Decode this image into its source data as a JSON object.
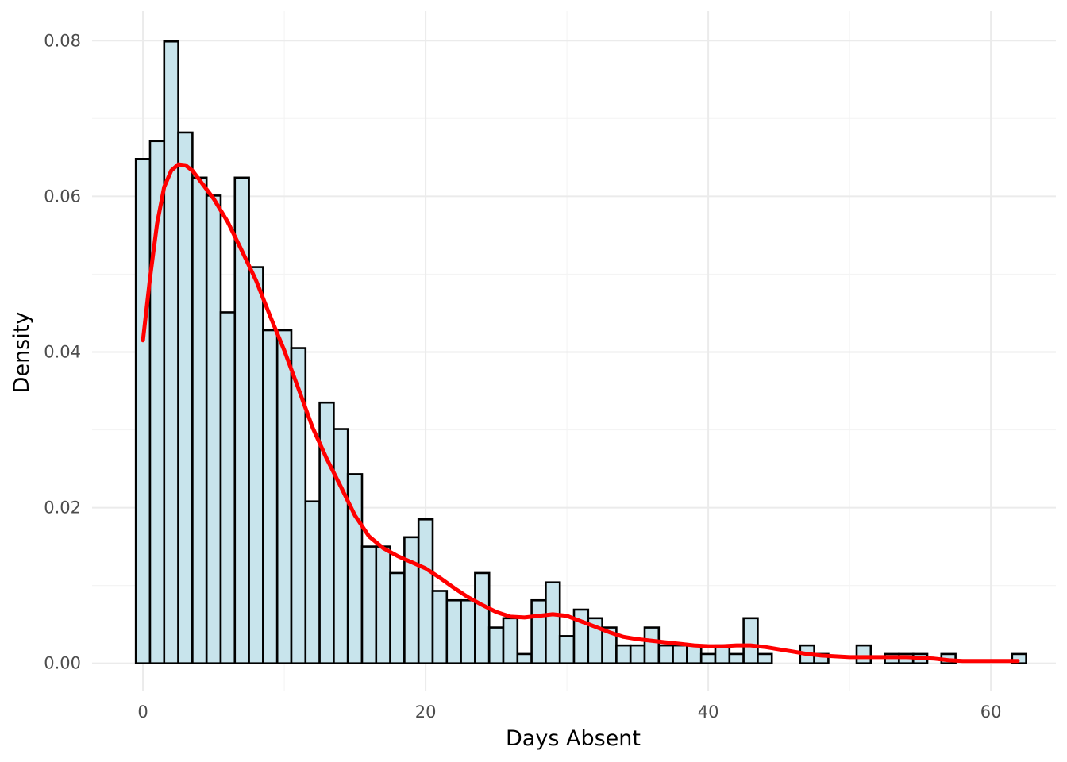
{
  "chart_data": {
    "type": "bar",
    "subtype": "histogram with density curve",
    "xlabel": "Days Absent",
    "ylabel": "Density",
    "xlim": [
      -3.6,
      64.6
    ],
    "ylim": [
      -0.0035,
      0.0838
    ],
    "xticks": [
      0,
      20,
      40,
      60
    ],
    "yticks": [
      0.0,
      0.02,
      0.04,
      0.06,
      0.08
    ],
    "xtick_labels": [
      "0",
      "20",
      "40",
      "60"
    ],
    "ytick_labels": [
      "0.00",
      "0.02",
      "0.04",
      "0.06",
      "0.08"
    ],
    "grid": true,
    "bin_width": 1,
    "bins_x": [
      0,
      1,
      2,
      3,
      4,
      5,
      6,
      7,
      8,
      9,
      10,
      11,
      12,
      13,
      14,
      15,
      16,
      17,
      18,
      19,
      20,
      21,
      22,
      23,
      24,
      25,
      26,
      27,
      28,
      29,
      30,
      31,
      32,
      33,
      34,
      35,
      36,
      37,
      38,
      39,
      40,
      41,
      42,
      43,
      44,
      45,
      46,
      47,
      48,
      49,
      50,
      51,
      52,
      53,
      54,
      55,
      56,
      57,
      58,
      59,
      60,
      61,
      62
    ],
    "bins_density": [
      0.0648,
      0.0671,
      0.0799,
      0.0682,
      0.0624,
      0.0601,
      0.0451,
      0.0624,
      0.0509,
      0.0428,
      0.0428,
      0.0405,
      0.0208,
      0.0335,
      0.0301,
      0.0243,
      0.015,
      0.015,
      0.0116,
      0.0162,
      0.0185,
      0.0093,
      0.0081,
      0.0081,
      0.0116,
      0.0046,
      0.0058,
      0.0012,
      0.0081,
      0.0104,
      0.0035,
      0.0069,
      0.0058,
      0.0046,
      0.0023,
      0.0023,
      0.0046,
      0.0023,
      0.0023,
      0.0023,
      0.0012,
      0.0023,
      0.0012,
      0.0058,
      0.0012,
      0,
      0,
      0.0023,
      0.0012,
      0,
      0,
      0.0023,
      0,
      0.0012,
      0.0012,
      0.0012,
      0,
      0.0012,
      0,
      0,
      0,
      0,
      0.0012
    ],
    "bar_fill": "#c8e4ec",
    "bar_stroke": "#000000",
    "density_color": "#ff0000",
    "density_curve": {
      "x": [
        0,
        0.5,
        1,
        1.5,
        2,
        2.5,
        3,
        3.5,
        4,
        5,
        6,
        7,
        8,
        9,
        10,
        11,
        12,
        13,
        14,
        15,
        16,
        17,
        18,
        19,
        20,
        21,
        22,
        23,
        24,
        25,
        26,
        27,
        28,
        29,
        30,
        31,
        32,
        33,
        34,
        35,
        36,
        37,
        38,
        39,
        40,
        41,
        42,
        43,
        44,
        45,
        46,
        47,
        48,
        49,
        50,
        51,
        52,
        53,
        54,
        55,
        56,
        57,
        58,
        59,
        60,
        61,
        61.9
      ],
      "y": [
        0.0415,
        0.0495,
        0.0565,
        0.0612,
        0.0633,
        0.0641,
        0.064,
        0.0633,
        0.0621,
        0.0597,
        0.0567,
        0.053,
        0.0492,
        0.0446,
        0.0402,
        0.0353,
        0.0303,
        0.0263,
        0.0227,
        0.019,
        0.0163,
        0.0148,
        0.0138,
        0.013,
        0.0122,
        0.011,
        0.0097,
        0.0085,
        0.0075,
        0.0066,
        0.006,
        0.0059,
        0.0061,
        0.0063,
        0.0061,
        0.0054,
        0.0047,
        0.004,
        0.0034,
        0.0031,
        0.0029,
        0.0027,
        0.0025,
        0.0023,
        0.0022,
        0.0022,
        0.0023,
        0.0023,
        0.0021,
        0.0018,
        0.0015,
        0.0012,
        0.001,
        0.0009,
        0.0008,
        0.0008,
        0.0008,
        0.0008,
        0.0008,
        0.0007,
        0.0006,
        0.0004,
        0.0003,
        0.0003,
        0.0003,
        0.0003,
        0.0003
      ]
    }
  }
}
